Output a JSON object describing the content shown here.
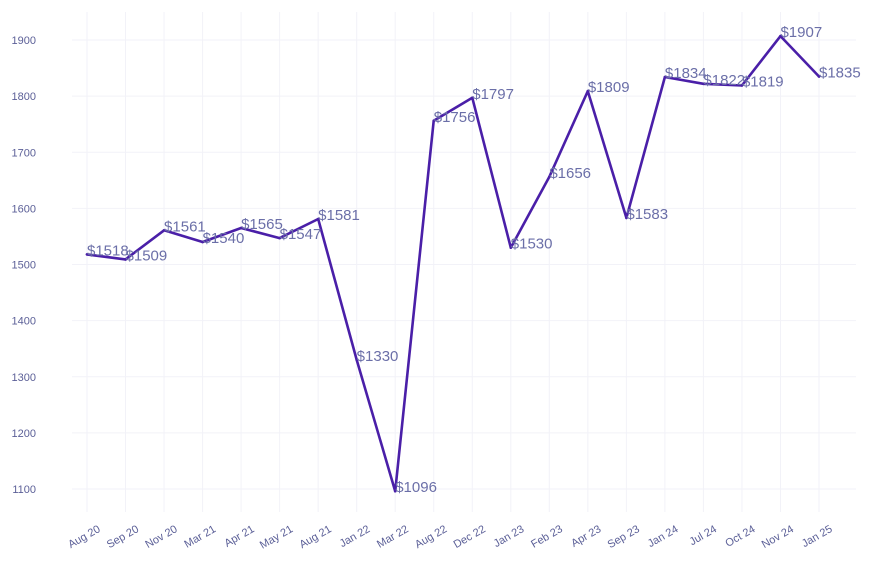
{
  "chart_data": {
    "type": "line",
    "title": "",
    "xlabel": "",
    "ylabel": "",
    "categories": [
      "Aug 20",
      "Sep 20",
      "Nov 20",
      "Mar 21",
      "Apr 21",
      "May 21",
      "Aug 21",
      "Jan 22",
      "Mar 22",
      "Aug 22",
      "Dec 22",
      "Jan 23",
      "Feb 23",
      "Apr 23",
      "Sep 23",
      "Jan 24",
      "Jul 24",
      "Oct 24",
      "Nov 24",
      "Jan 25"
    ],
    "series": [
      {
        "values": [
          1518,
          1509,
          1561,
          1540,
          1565,
          1547,
          1581,
          1330,
          1096,
          1756,
          1797,
          1530,
          1656,
          1809,
          1583,
          1834,
          1822,
          1819,
          1907,
          1835
        ],
        "labels": [
          "$1518",
          "$1509",
          "$1561",
          "$1540",
          "$1565",
          "$1547",
          "$1581",
          "$1330",
          "$1096",
          "$1756",
          "$1797",
          "$1530",
          "$1656",
          "$1809",
          "$1583",
          "$1834",
          "$1822",
          "$1819",
          "$1907",
          "$1835"
        ]
      }
    ],
    "yticks": [
      1100,
      1200,
      1300,
      1400,
      1500,
      1600,
      1700,
      1800,
      1900
    ],
    "ylim": [
      1075,
      1925
    ],
    "grid": true,
    "line_color": "#4a1fa8"
  }
}
